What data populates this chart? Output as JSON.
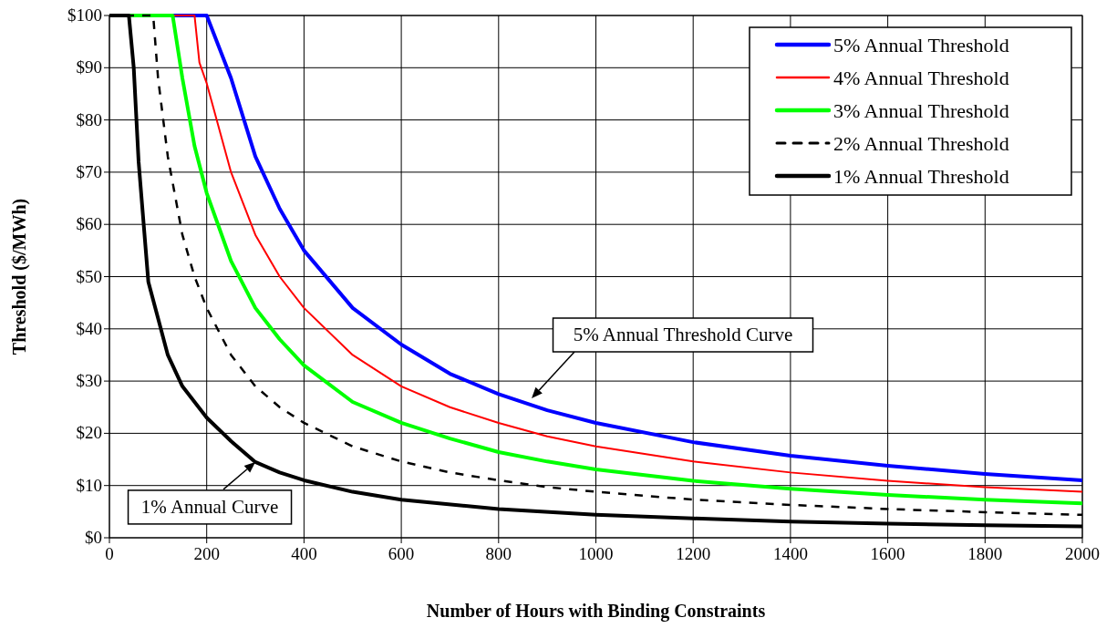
{
  "chart_data": {
    "type": "line",
    "xlabel": "Number of Hours with Binding Constraints",
    "ylabel": "Threshold ($/MWh)",
    "xlim": [
      0,
      2000
    ],
    "xticks": [
      0,
      200,
      400,
      600,
      800,
      1000,
      1200,
      1400,
      1600,
      1800,
      2000
    ],
    "ylim": [
      0,
      100
    ],
    "yticks": [
      {
        "value": 0,
        "label": "$0"
      },
      {
        "value": 10,
        "label": "$10"
      },
      {
        "value": 20,
        "label": "$20"
      },
      {
        "value": 30,
        "label": "$30"
      },
      {
        "value": 40,
        "label": "$40"
      },
      {
        "value": 50,
        "label": "$50"
      },
      {
        "value": 60,
        "label": "$60"
      },
      {
        "value": 70,
        "label": "$70"
      },
      {
        "value": 80,
        "label": "$80"
      },
      {
        "value": 90,
        "label": "$90"
      },
      {
        "value": 100,
        "label": "$100"
      }
    ],
    "grid": true,
    "legend": "top right",
    "marker": "none",
    "series": [
      {
        "name": "5% Annual Threshold",
        "color": "#0000ff",
        "x": [
          0,
          200,
          250,
          300,
          350,
          400,
          500,
          600,
          700,
          800,
          900,
          1000,
          1200,
          1400,
          1600,
          1800,
          2000
        ],
        "values": [
          100,
          100,
          88,
          73,
          63,
          55,
          44,
          37,
          31.4,
          27.5,
          24.4,
          22,
          18.3,
          15.7,
          13.8,
          12.2,
          11
        ]
      },
      {
        "name": "4% Annual Threshold",
        "color": "#ff0000",
        "x": [
          0,
          175,
          185,
          200,
          250,
          300,
          350,
          400,
          500,
          600,
          700,
          800,
          900,
          1000,
          1200,
          1400,
          1600,
          1800,
          2000
        ],
        "values": [
          100,
          100,
          91,
          87,
          70,
          58,
          50,
          44,
          35,
          29,
          25,
          22,
          19.4,
          17.5,
          14.6,
          12.5,
          10.9,
          9.7,
          8.8
        ]
      },
      {
        "name": "3% Annual Threshold",
        "color": "#00ff00",
        "x": [
          0,
          130,
          150,
          175,
          200,
          250,
          300,
          350,
          400,
          500,
          600,
          700,
          800,
          900,
          1000,
          1200,
          1400,
          1600,
          1800,
          2000
        ],
        "values": [
          100,
          100,
          88,
          75,
          66,
          53,
          44,
          38,
          33,
          26,
          22,
          19,
          16.4,
          14.6,
          13.1,
          10.9,
          9.4,
          8.2,
          7.3,
          6.6
        ]
      },
      {
        "name": "2% Annual Threshold",
        "color": "#000000",
        "line_style": "dashed",
        "x": [
          0,
          90,
          100,
          120,
          150,
          175,
          200,
          250,
          300,
          350,
          400,
          500,
          600,
          700,
          800,
          900,
          1000,
          1200,
          1400,
          1600,
          1800,
          2000
        ],
        "values": [
          100,
          100,
          88,
          73,
          58,
          50,
          44,
          35,
          29,
          25,
          22,
          17.5,
          14.6,
          12.5,
          11,
          9.7,
          8.8,
          7.3,
          6.3,
          5.5,
          4.9,
          4.4
        ]
      },
      {
        "name": "1% Annual Threshold",
        "color": "#000000",
        "x": [
          0,
          40,
          50,
          60,
          80,
          100,
          120,
          150,
          200,
          250,
          300,
          350,
          400,
          500,
          600,
          800,
          1000,
          1200,
          1400,
          1600,
          1800,
          2000
        ],
        "values": [
          100,
          100,
          90,
          72,
          49,
          42,
          35,
          29,
          23,
          18.5,
          14.5,
          12.5,
          11,
          8.8,
          7.3,
          5.5,
          4.4,
          3.7,
          3.1,
          2.7,
          2.4,
          2.2
        ]
      }
    ],
    "annotations": [
      "5% Annual Threshold Curve",
      {
        "text": "1% Annual Curve",
        "x": 300,
        "y": 14.5
      }
    ]
  }
}
